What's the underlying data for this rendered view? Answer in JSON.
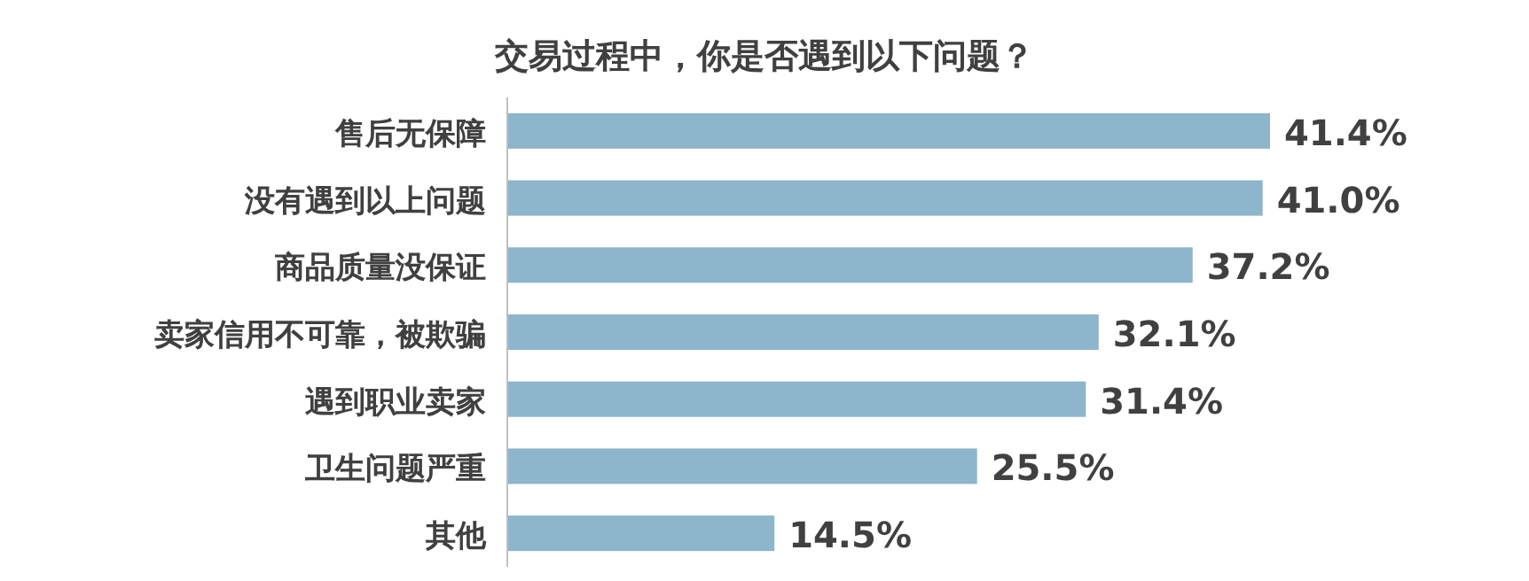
{
  "chart_data": {
    "type": "bar",
    "orientation": "horizontal",
    "title": "交易过程中，你是否遇到以下问题？",
    "categories": [
      "售后无保障",
      "没有遇到以上问题",
      "商品质量没保证",
      "卖家信用不可靠，被欺骗",
      "遇到职业卖家",
      "卫生问题严重",
      "其他"
    ],
    "values": [
      41.4,
      41.0,
      37.2,
      32.1,
      31.4,
      25.5,
      14.5
    ],
    "value_labels": [
      "41.4%",
      "41.0%",
      "37.2%",
      "32.1%",
      "31.4%",
      "25.5%",
      "14.5%"
    ],
    "color": "#8db5cc"
  }
}
